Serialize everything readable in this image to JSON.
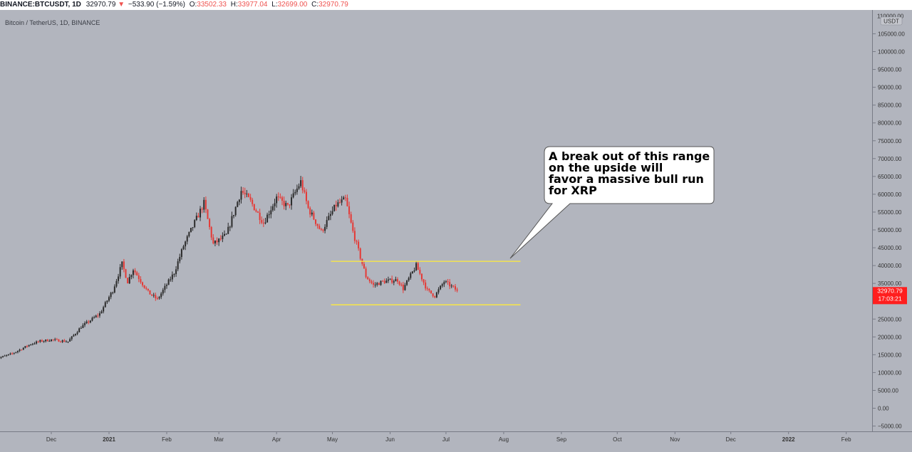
{
  "header": {
    "symbol": "BINANCE:BTCUSDT, 1D",
    "last": "32970.79",
    "change_arrow": "▼",
    "change": "−533.90 (−1.59%)",
    "o_label": "O:",
    "o_value": "33502.33",
    "h_label": "H:",
    "h_value": "33977.04",
    "l_label": "L:",
    "l_value": "32699.00",
    "c_label": "C:",
    "c_value": "32970.79"
  },
  "chart": {
    "subtitle": "Bitcoin / TetherUS, 1D, BINANCE",
    "currency": "USDT",
    "price_label": "32970.79",
    "countdown": "17:03:21",
    "annotation": [
      "A break out of this range",
      "on the upside will",
      "favor a massive bull run",
      "for XRP"
    ],
    "colors": {
      "background": "#b2b5be",
      "up": "#2b2b2b",
      "down": "#e53935",
      "range_line": "#ffeb3b",
      "price_tag": "#ff1e1e"
    }
  },
  "chart_data": {
    "type": "candlestick",
    "title": "Bitcoin / TetherUS, 1D, BINANCE",
    "ylim": [
      -7000,
      110000
    ],
    "y_ticks": [
      "105000.00",
      "100000.00",
      "95000.00",
      "90000.00",
      "85000.00",
      "80000.00",
      "75000.00",
      "70000.00",
      "65000.00",
      "60000.00",
      "55000.00",
      "50000.00",
      "45000.00",
      "40000.00",
      "35000.00",
      "30000.00",
      "25000.00",
      "20000.00",
      "15000.00",
      "10000.00",
      "5000.00",
      "0.00",
      "−5000.00"
    ],
    "y_top_partial": "110000.00",
    "x_ticks": [
      "Dec",
      "2021",
      "Feb",
      "Mar",
      "Apr",
      "May",
      "Jun",
      "Jul",
      "Aug",
      "Sep",
      "Oct",
      "Nov",
      "Dec",
      "2022",
      "Feb"
    ],
    "range_lines": [
      {
        "value": 41200,
        "from": "2021-05-01",
        "to": "2021-08-10"
      },
      {
        "value": 29000,
        "from": "2021-05-01",
        "to": "2021-08-10"
      }
    ],
    "price_points": [
      [
        "2020-11-01",
        13800
      ],
      [
        "2020-11-10",
        15300
      ],
      [
        "2020-11-20",
        18000
      ],
      [
        "2020-11-25",
        18800
      ],
      [
        "2020-12-01",
        19200
      ],
      [
        "2020-12-10",
        18700
      ],
      [
        "2020-12-17",
        22800
      ],
      [
        "2020-12-27",
        26500
      ],
      [
        "2021-01-03",
        33000
      ],
      [
        "2021-01-08",
        40500
      ],
      [
        "2021-01-11",
        35500
      ],
      [
        "2021-01-14",
        39000
      ],
      [
        "2021-01-22",
        32500
      ],
      [
        "2021-01-27",
        30500
      ],
      [
        "2021-02-05",
        38000
      ],
      [
        "2021-02-10",
        45500
      ],
      [
        "2021-02-21",
        57500
      ],
      [
        "2021-02-26",
        46000
      ],
      [
        "2021-03-05",
        48500
      ],
      [
        "2021-03-13",
        61000
      ],
      [
        "2021-03-18",
        58000
      ],
      [
        "2021-03-25",
        52000
      ],
      [
        "2021-04-01",
        59000
      ],
      [
        "2021-04-07",
        56500
      ],
      [
        "2021-04-14",
        63500
      ],
      [
        "2021-04-18",
        56000
      ],
      [
        "2021-04-25",
        49500
      ],
      [
        "2021-05-03",
        57000
      ],
      [
        "2021-05-08",
        58500
      ],
      [
        "2021-05-12",
        49500
      ],
      [
        "2021-05-19",
        37000
      ],
      [
        "2021-05-23",
        34500
      ],
      [
        "2021-05-28",
        35500
      ],
      [
        "2021-06-05",
        36000
      ],
      [
        "2021-06-08",
        33500
      ],
      [
        "2021-06-15",
        40000
      ],
      [
        "2021-06-21",
        33000
      ],
      [
        "2021-06-25",
        31500
      ],
      [
        "2021-06-30",
        35500
      ],
      [
        "2021-07-03",
        34500
      ],
      [
        "2021-07-07",
        32970
      ]
    ]
  }
}
